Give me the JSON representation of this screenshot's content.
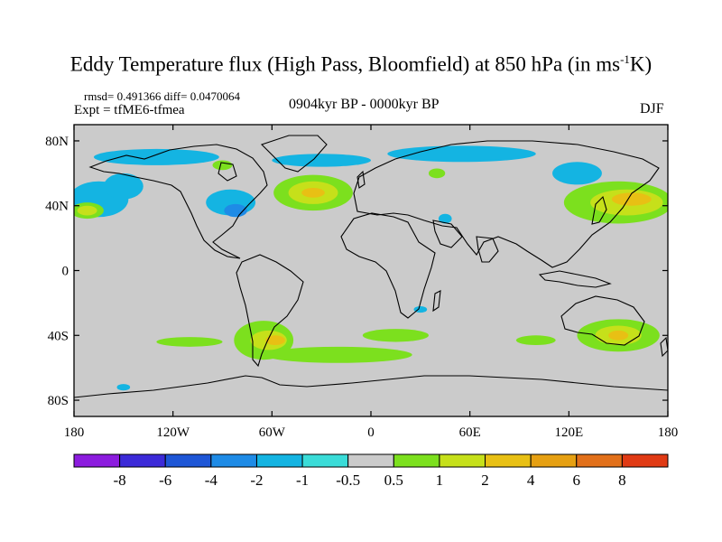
{
  "title_prefix": "Eddy Temperature flux (High Pass, Bloomfield) at 850 hPa (in ms",
  "title_sup": "-1",
  "title_suffix": "K)",
  "rmsd_line": "rmsd= 0.491366 diff= 0.0470064",
  "expt_line": "Expt = tfME6-tfmea",
  "period": "0904kyr BP - 0000kyr BP",
  "season": "DJF",
  "map": {
    "projection": "cylindrical equidistant",
    "lon_range": [
      -180,
      180
    ],
    "lat_range": [
      -90,
      90
    ],
    "lat_ticks": [
      {
        "lat": 80,
        "label": "80N"
      },
      {
        "lat": 40,
        "label": "40N"
      },
      {
        "lat": 0,
        "label": "0"
      },
      {
        "lat": -40,
        "label": "40S"
      },
      {
        "lat": -80,
        "label": "80S"
      }
    ],
    "lon_ticks": [
      {
        "lon": -180,
        "label": "180"
      },
      {
        "lon": -120,
        "label": "120W"
      },
      {
        "lon": -60,
        "label": "60W"
      },
      {
        "lon": 0,
        "label": "0"
      },
      {
        "lon": 60,
        "label": "60E"
      },
      {
        "lon": 120,
        "label": "120E"
      },
      {
        "lon": 180,
        "label": "180"
      }
    ],
    "background_color": "#cbcbcb",
    "anomalies": [
      {
        "lon": -165,
        "lat": 44,
        "rx": 18,
        "ry": 11,
        "level": -1
      },
      {
        "lon": -172,
        "lat": 37,
        "rx": 10,
        "ry": 5,
        "level": 1
      },
      {
        "lon": -172,
        "lat": 37,
        "rx": 6,
        "ry": 3,
        "level": 2
      },
      {
        "lon": -150,
        "lat": 52,
        "rx": 12,
        "ry": 8,
        "level": -1
      },
      {
        "lon": -130,
        "lat": 70,
        "rx": 38,
        "ry": 5,
        "level": -1
      },
      {
        "lon": -85,
        "lat": 42,
        "rx": 15,
        "ry": 8,
        "level": -1
      },
      {
        "lon": -82,
        "lat": 37,
        "rx": 7,
        "ry": 4,
        "level": -2
      },
      {
        "lon": -90,
        "lat": 65,
        "rx": 6,
        "ry": 3,
        "level": 1
      },
      {
        "lon": -35,
        "lat": 48,
        "rx": 24,
        "ry": 11,
        "level": 1
      },
      {
        "lon": -35,
        "lat": 48,
        "rx": 15,
        "ry": 7,
        "level": 2
      },
      {
        "lon": -35,
        "lat": 48,
        "rx": 7,
        "ry": 3,
        "level": 4
      },
      {
        "lon": -30,
        "lat": 68,
        "rx": 30,
        "ry": 4,
        "level": -1
      },
      {
        "lon": 55,
        "lat": 72,
        "rx": 45,
        "ry": 5,
        "level": -1
      },
      {
        "lon": 40,
        "lat": 60,
        "rx": 5,
        "ry": 3,
        "level": 1
      },
      {
        "lon": 45,
        "lat": 32,
        "rx": 4,
        "ry": 3,
        "level": -1
      },
      {
        "lon": 150,
        "lat": 42,
        "rx": 33,
        "ry": 13,
        "level": 1
      },
      {
        "lon": 155,
        "lat": 42,
        "rx": 22,
        "ry": 8,
        "level": 2
      },
      {
        "lon": 158,
        "lat": 44,
        "rx": 12,
        "ry": 4,
        "level": 4
      },
      {
        "lon": 125,
        "lat": 60,
        "rx": 15,
        "ry": 7,
        "level": -1
      },
      {
        "lon": -65,
        "lat": -43,
        "rx": 18,
        "ry": 12,
        "level": 1
      },
      {
        "lon": -62,
        "lat": -43,
        "rx": 11,
        "ry": 6,
        "level": 2
      },
      {
        "lon": -58,
        "lat": -43,
        "rx": 6,
        "ry": 3,
        "level": 4
      },
      {
        "lon": -110,
        "lat": -44,
        "rx": 20,
        "ry": 3,
        "level": 1
      },
      {
        "lon": -20,
        "lat": -52,
        "rx": 45,
        "ry": 5,
        "level": 1
      },
      {
        "lon": 15,
        "lat": -40,
        "rx": 20,
        "ry": 4,
        "level": 1
      },
      {
        "lon": 30,
        "lat": -24,
        "rx": 4,
        "ry": 2,
        "level": -1
      },
      {
        "lon": 100,
        "lat": -43,
        "rx": 12,
        "ry": 3,
        "level": 1
      },
      {
        "lon": 150,
        "lat": -40,
        "rx": 25,
        "ry": 10,
        "level": 1
      },
      {
        "lon": 150,
        "lat": -40,
        "rx": 14,
        "ry": 6,
        "level": 2
      },
      {
        "lon": 150,
        "lat": -40,
        "rx": 6,
        "ry": 3,
        "level": 4
      },
      {
        "lon": -150,
        "lat": -72,
        "rx": 4,
        "ry": 2,
        "level": -1
      }
    ]
  },
  "colorbar": {
    "colors": [
      "#8c1cde",
      "#3c2ad8",
      "#1e56d6",
      "#1e8be6",
      "#14b4e2",
      "#3adcd8",
      "#cbcbcb",
      "#7ce01e",
      "#c6e01a",
      "#e8c014",
      "#e6a012",
      "#e2701a",
      "#e03a14"
    ],
    "labels": [
      "-8",
      "-6",
      "-4",
      "-2",
      "-1",
      "-0.5",
      "0.5",
      "1",
      "2",
      "4",
      "6",
      "8"
    ]
  }
}
